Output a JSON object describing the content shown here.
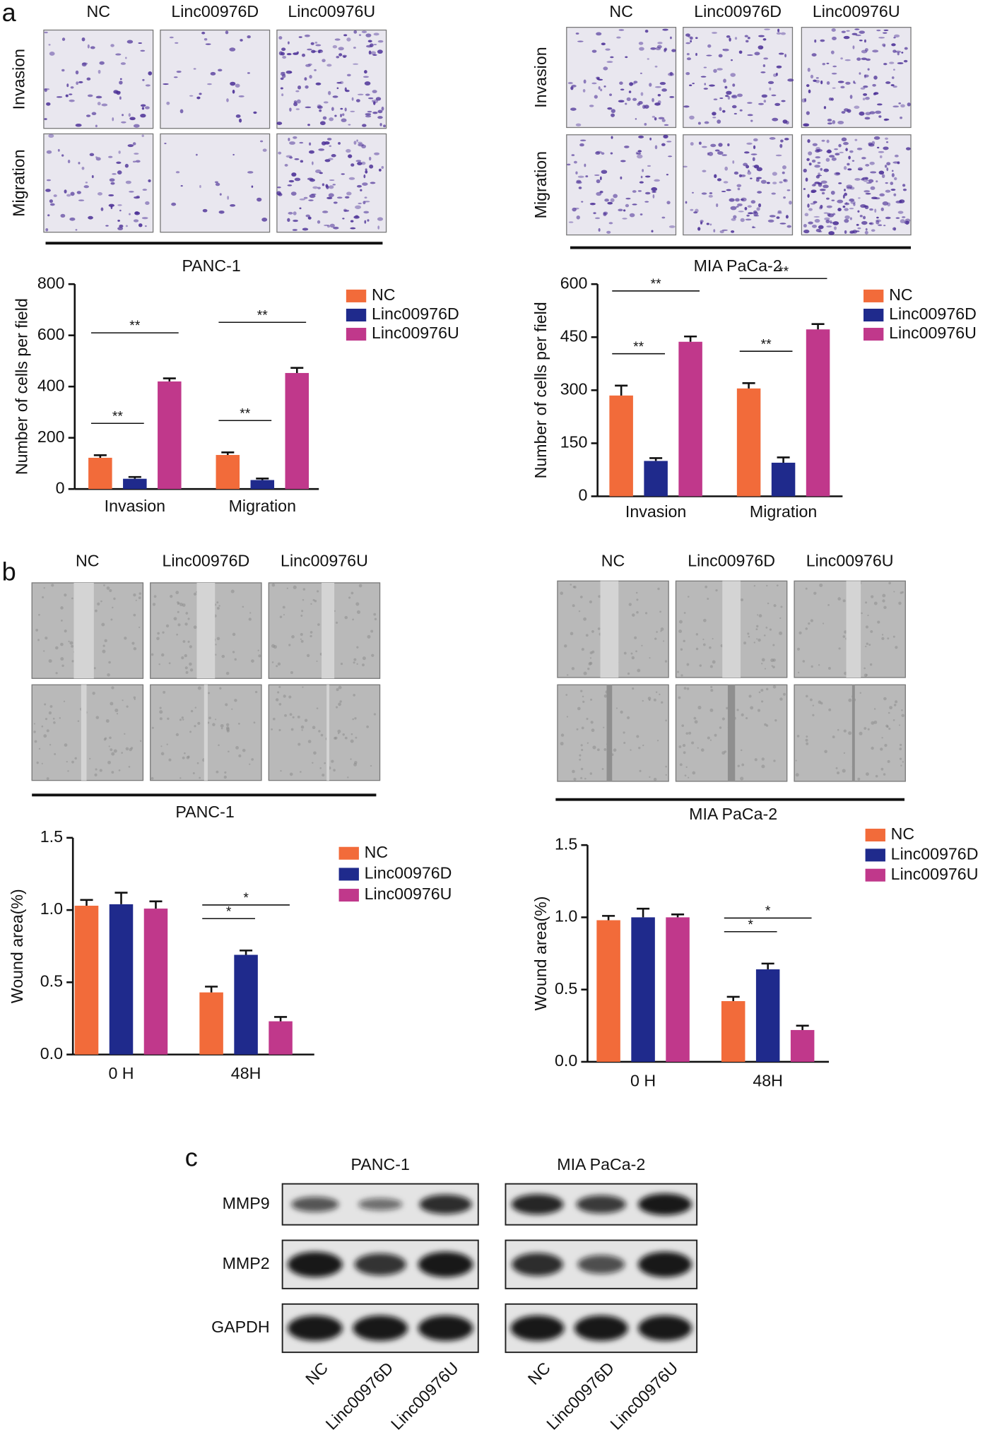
{
  "panel_labels": [
    "a",
    "b",
    "c"
  ],
  "image_grids": [
    {
      "columns": [
        "NC",
        "Linc00976D",
        "Linc00976U"
      ],
      "rows": [
        "Invasion",
        "Migration"
      ]
    },
    {
      "columns": [
        "NC",
        "Linc00976D",
        "Linc00976U"
      ],
      "rows": [
        "Invasion",
        "Migration"
      ]
    },
    {
      "columns": [
        "NC",
        "Linc00976D",
        "Linc00976U"
      ]
    },
    {
      "columns": [
        "NC",
        "Linc00976D",
        "Linc00976U"
      ]
    }
  ],
  "blot": {
    "bands": [
      "MMP9",
      "MMP2",
      "GAPDH"
    ],
    "groups": [
      {
        "title": "PANC-1",
        "lanes": [
          "NC",
          "Linc00976D",
          "Linc00976U"
        ]
      },
      {
        "title": "MIA PaCa-2",
        "lanes": [
          "NC",
          "Linc00976D",
          "Linc00976U"
        ]
      }
    ]
  },
  "chart_data": [
    {
      "type": "bar",
      "title": "PANC-1",
      "y_label": "Number of cells per field",
      "categories": [
        "Invasion",
        "Migration"
      ],
      "series": [
        {
          "name": "NC",
          "color": "#f26b3a",
          "values": [
            122,
            133
          ],
          "errors": [
            10,
            10
          ]
        },
        {
          "name": "Linc00976D",
          "color": "#1f2a8c",
          "values": [
            40,
            35
          ],
          "errors": [
            7,
            6
          ]
        },
        {
          "name": "Linc00976U",
          "color": "#c0388b",
          "values": [
            420,
            453
          ],
          "errors": [
            12,
            20
          ]
        }
      ],
      "annotations": [
        "**",
        "**",
        "**",
        "**"
      ],
      "ylim": [
        0,
        800
      ],
      "yticks": [
        0,
        200,
        400,
        600,
        800
      ]
    },
    {
      "type": "bar",
      "title": "MIA PaCa-2",
      "y_label": "Number of cells per field",
      "categories": [
        "Invasion",
        "Migration"
      ],
      "series": [
        {
          "name": "NC",
          "color": "#f26b3a",
          "values": [
            285,
            305
          ],
          "errors": [
            28,
            15
          ]
        },
        {
          "name": "Linc00976D",
          "color": "#1f2a8c",
          "values": [
            100,
            95
          ],
          "errors": [
            8,
            15
          ]
        },
        {
          "name": "Linc00976U",
          "color": "#c0388b",
          "values": [
            437,
            472
          ],
          "errors": [
            15,
            15
          ]
        }
      ],
      "annotations": [
        "**",
        "**",
        "**",
        "**"
      ],
      "ylim": [
        0,
        600
      ],
      "yticks": [
        0,
        150,
        300,
        450,
        600
      ]
    },
    {
      "type": "bar",
      "title": "PANC-1",
      "y_label": "Wound area(%)",
      "categories": [
        "0 H",
        "48H"
      ],
      "series": [
        {
          "name": "NC",
          "color": "#f26b3a",
          "values": [
            1.03,
            0.43
          ],
          "errors": [
            0.04,
            0.04
          ]
        },
        {
          "name": "Linc00976D",
          "color": "#1f2a8c",
          "values": [
            1.04,
            0.69
          ],
          "errors": [
            0.08,
            0.03
          ]
        },
        {
          "name": "Linc00976U",
          "color": "#c0388b",
          "values": [
            1.01,
            0.23
          ],
          "errors": [
            0.05,
            0.03
          ]
        }
      ],
      "annotations": [
        null,
        null,
        "*",
        "*"
      ],
      "ylim": [
        0,
        1.5
      ],
      "yticks": [
        {
          "value": 0,
          "label": "0.0"
        },
        {
          "value": 0.5,
          "label": "0.5"
        },
        {
          "value": 1,
          "label": "1.0"
        },
        {
          "value": 1.5,
          "label": "1.5"
        }
      ]
    },
    {
      "type": "bar",
      "title": "MIA PaCa-2",
      "y_label": "Wound area(%)",
      "categories": [
        "0 H",
        "48H"
      ],
      "series": [
        {
          "name": "NC",
          "color": "#f26b3a",
          "values": [
            0.98,
            0.42
          ],
          "errors": [
            0.03,
            0.03
          ]
        },
        {
          "name": "Linc00976D",
          "color": "#1f2a8c",
          "values": [
            1.0,
            0.64
          ],
          "errors": [
            0.06,
            0.04
          ]
        },
        {
          "name": "Linc00976U",
          "color": "#c0388b",
          "values": [
            1.0,
            0.22
          ],
          "errors": [
            0.02,
            0.03
          ]
        }
      ],
      "annotations": [
        null,
        null,
        "*",
        "*"
      ],
      "ylim": [
        0,
        1.5
      ],
      "yticks": [
        {
          "value": 0,
          "label": "0.0"
        },
        {
          "value": 0.5,
          "label": "0.5"
        },
        {
          "value": 1,
          "label": "1.0"
        },
        {
          "value": 1.5,
          "label": "1.5"
        }
      ]
    }
  ]
}
